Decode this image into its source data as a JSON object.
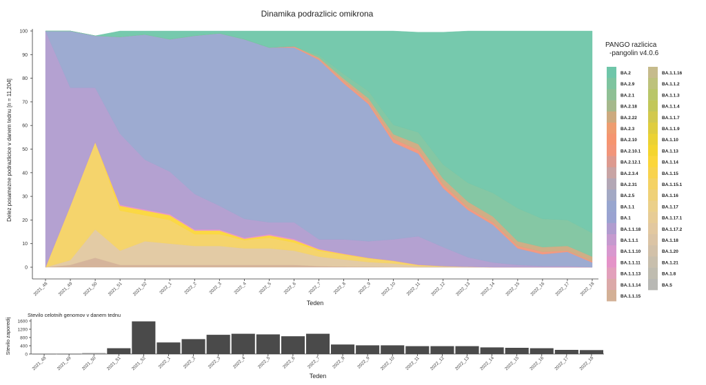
{
  "main_chart": {
    "title": "Dinamika podrazlicic omikrona",
    "xlabel": "Teden",
    "ylabel": "Delez posamezne podrazlicice v danem tednu [n = 11,204]",
    "y_ticks": [
      "0",
      "10",
      "20",
      "30",
      "40",
      "50",
      "60",
      "70",
      "80",
      "90",
      "100"
    ],
    "weeks": [
      "2021_48",
      "2021_49",
      "2021_50",
      "2021_51",
      "2021_52",
      "2022_1",
      "2022_2",
      "2022_3",
      "2022_4",
      "2022_5",
      "2022_6",
      "2022_7",
      "2022_8",
      "2022_9",
      "2022_10",
      "2022_11",
      "2022_12",
      "2022_13",
      "2022_14",
      "2022_15",
      "2022_16",
      "2022_17",
      "2022_18"
    ]
  },
  "legend": {
    "title_line1": "PANGO razlicica",
    "title_line2": "-pangolin v4.0.6",
    "col1": [
      {
        "label": "BA.2",
        "color": "#6fc6a9"
      },
      {
        "label": "BA.2.9",
        "color": "#7ec49f"
      },
      {
        "label": "BA.2.1",
        "color": "#8fc095"
      },
      {
        "label": "BA.2.18",
        "color": "#a5b88c"
      },
      {
        "label": "BA.2.22",
        "color": "#ccaa7f"
      },
      {
        "label": "BA.2.3",
        "color": "#ee9d70"
      },
      {
        "label": "BA.2.10",
        "color": "#f59570"
      },
      {
        "label": "BA.2.10.1",
        "color": "#f2957a"
      },
      {
        "label": "BA.2.12.1",
        "color": "#dd9a8f"
      },
      {
        "label": "BA.2.3.4",
        "color": "#c8a4a4"
      },
      {
        "label": "BA.2.31",
        "color": "#b3a7b5"
      },
      {
        "label": "BA.2.5",
        "color": "#a3a9c4"
      },
      {
        "label": "BA.1.1",
        "color": "#98a6cf"
      },
      {
        "label": "BA.1",
        "color": "#9aa3d1"
      },
      {
        "label": "BA.1.1.18",
        "color": "#b09ccf"
      },
      {
        "label": "BA.1.1.1",
        "color": "#c59acf"
      },
      {
        "label": "BA.1.1.10",
        "color": "#d898cf"
      },
      {
        "label": "BA.1.1.11",
        "color": "#e493c8"
      },
      {
        "label": "BA.1.1.13",
        "color": "#e2a0bb"
      },
      {
        "label": "BA.1.1.14",
        "color": "#dba9a8"
      },
      {
        "label": "BA.1.1.15",
        "color": "#d3b096"
      }
    ],
    "col2": [
      {
        "label": "BA.1.1.16",
        "color": "#c6bb8c"
      },
      {
        "label": "BA.1.1.2",
        "color": "#bdc27c"
      },
      {
        "label": "BA.1.1.3",
        "color": "#b9c66a"
      },
      {
        "label": "BA.1.1.4",
        "color": "#c2c75a"
      },
      {
        "label": "BA.1.1.7",
        "color": "#d2c94e"
      },
      {
        "label": "BA.1.1.9",
        "color": "#dfcd3f"
      },
      {
        "label": "BA.1.10",
        "color": "#ebd234"
      },
      {
        "label": "BA.1.13",
        "color": "#f4d52f"
      },
      {
        "label": "BA.1.14",
        "color": "#fbd63a"
      },
      {
        "label": "BA.1.15",
        "color": "#f8d34e"
      },
      {
        "label": "BA.1.15.1",
        "color": "#f4d264"
      },
      {
        "label": "BA.1.16",
        "color": "#efd178"
      },
      {
        "label": "BA.1.17",
        "color": "#ebd08a"
      },
      {
        "label": "BA.1.17.1",
        "color": "#e7cc96"
      },
      {
        "label": "BA.1.17.2",
        "color": "#e2c8a0"
      },
      {
        "label": "BA.1.18",
        "color": "#dbc4a5"
      },
      {
        "label": "BA.1.20",
        "color": "#d2c1a9"
      },
      {
        "label": "BA.1.21",
        "color": "#c8bfad"
      },
      {
        "label": "BA.1.8",
        "color": "#bfbcb0"
      },
      {
        "label": "BA.5",
        "color": "#b8b8b4"
      }
    ]
  },
  "chart_data": [
    {
      "type": "area",
      "title": "Dinamika podrazlicic omikrona",
      "xlabel": "Teden",
      "ylabel": "Delez posamezne podrazlicice v danem tednu [n = 11,204]",
      "ylim": [
        0,
        100
      ],
      "stacked": true,
      "grid": false,
      "legend_position": "right",
      "x": [
        "2021_48",
        "2021_49",
        "2021_50",
        "2021_51",
        "2021_52",
        "2022_1",
        "2022_2",
        "2022_3",
        "2022_4",
        "2022_5",
        "2022_6",
        "2022_7",
        "2022_8",
        "2022_9",
        "2022_10",
        "2022_11",
        "2022_12",
        "2022_13",
        "2022_14",
        "2022_15",
        "2022_16",
        "2022_17",
        "2022_18"
      ],
      "series": [
        {
          "name": "BA.1.1.15",
          "color": "#d3b096",
          "values": [
            0,
            1,
            4,
            1,
            1,
            1,
            1,
            1,
            1,
            1,
            1,
            0.5,
            0.3,
            0.2,
            0.1,
            0,
            0,
            0,
            0,
            0,
            0,
            0,
            0
          ]
        },
        {
          "name": "BA.1.17.2",
          "color": "#e2c8a0",
          "values": [
            0,
            2,
            12,
            6,
            10,
            9,
            8,
            8,
            7,
            7,
            6,
            4,
            3,
            2,
            1.5,
            0.5,
            0.3,
            0.2,
            0,
            0,
            0,
            0,
            0
          ]
        },
        {
          "name": "BA.1.15",
          "color": "#f4d264",
          "values": [
            0,
            23,
            37,
            17,
            11,
            10,
            5,
            5,
            3.5,
            4.5,
            3.5,
            2.5,
            2,
            1.5,
            1,
            0.5,
            0.2,
            0,
            0,
            0,
            0,
            0,
            0
          ]
        },
        {
          "name": "BA.1.14",
          "color": "#fbd63a",
          "values": [
            0,
            0,
            0,
            2,
            2,
            2,
            1.5,
            1.5,
            0.5,
            1,
            1,
            0.5,
            0.3,
            0.2,
            0.1,
            0,
            0,
            0,
            0,
            0,
            0,
            0,
            0
          ]
        },
        {
          "name": "BA.1.1.11",
          "color": "#e493c8",
          "values": [
            0,
            0,
            0,
            0.5,
            0.5,
            0.5,
            0.5,
            0.5,
            0.5,
            0.5,
            0.5,
            0.3,
            0.2,
            0.1,
            0.1,
            0.1,
            0,
            0,
            0,
            0,
            0,
            0,
            0
          ]
        },
        {
          "name": "BA.1.1.18",
          "color": "#b09ccf",
          "values": [
            100,
            50,
            23,
            30,
            21,
            18,
            15,
            10,
            8,
            5,
            7,
            4,
            6,
            7,
            9,
            12,
            8,
            4,
            2,
            1,
            0.5,
            0.5,
            0
          ]
        },
        {
          "name": "BA.1.1",
          "color": "#98a6cf",
          "values": [
            0,
            24,
            22,
            41,
            53,
            56,
            67,
            73,
            76,
            74,
            74,
            76,
            66,
            58,
            41,
            35,
            25,
            20,
            16,
            7,
            5,
            6,
            2
          ]
        },
        {
          "name": "BA.2.10.1",
          "color": "#f2957a",
          "values": [
            0,
            0,
            0,
            0,
            0,
            0,
            0,
            0,
            0,
            0,
            0.5,
            0.5,
            1,
            1,
            1.5,
            1.5,
            1.5,
            1,
            1,
            1,
            1,
            0.5,
            0.5
          ]
        },
        {
          "name": "BA.2.22",
          "color": "#ccaa7f",
          "values": [
            0,
            0,
            0,
            0,
            0,
            0,
            0,
            0,
            0,
            0,
            0,
            0.5,
            1,
            1.5,
            2,
            2.5,
            2.5,
            2.5,
            2.5,
            2,
            2,
            2,
            2
          ]
        },
        {
          "name": "BA.2.9",
          "color": "#7ec49f",
          "values": [
            0,
            0,
            0,
            0,
            0,
            0,
            0,
            0,
            0,
            0,
            0,
            1,
            2,
            3,
            4,
            5,
            6,
            8,
            10,
            14,
            12,
            11,
            10
          ]
        },
        {
          "name": "BA.2",
          "color": "#6fc6a9",
          "values": [
            0,
            0,
            0,
            2.5,
            1.5,
            3.5,
            2,
            1,
            3.5,
            7,
            6.5,
            10.2,
            18.2,
            25.5,
            39.7,
            42.4,
            56,
            64.3,
            68.5,
            75,
            79.5,
            80,
            85.5
          ]
        }
      ]
    },
    {
      "type": "bar",
      "title": "Stevilo celotnih genomov v danem tednu",
      "xlabel": "Teden",
      "ylabel": "Stevilo zaporedij",
      "ylim": [
        0,
        1700
      ],
      "y_ticks": [
        "0",
        "400",
        "800",
        "1200",
        "1600"
      ],
      "categories": [
        "2021_48",
        "2021_49",
        "2021_50",
        "2021_51",
        "2021_52",
        "2022_1",
        "2022_2",
        "2022_3",
        "2022_4",
        "2022_5",
        "2022_6",
        "2022_7",
        "2022_8",
        "2022_9",
        "2022_10",
        "2022_11",
        "2022_12",
        "2022_13",
        "2022_14",
        "2022_15",
        "2022_16",
        "2022_17",
        "2022_18"
      ],
      "values": [
        2,
        5,
        60,
        280,
        1580,
        560,
        720,
        930,
        980,
        950,
        860,
        980,
        460,
        420,
        420,
        380,
        380,
        380,
        320,
        300,
        280,
        200,
        190
      ]
    }
  ]
}
